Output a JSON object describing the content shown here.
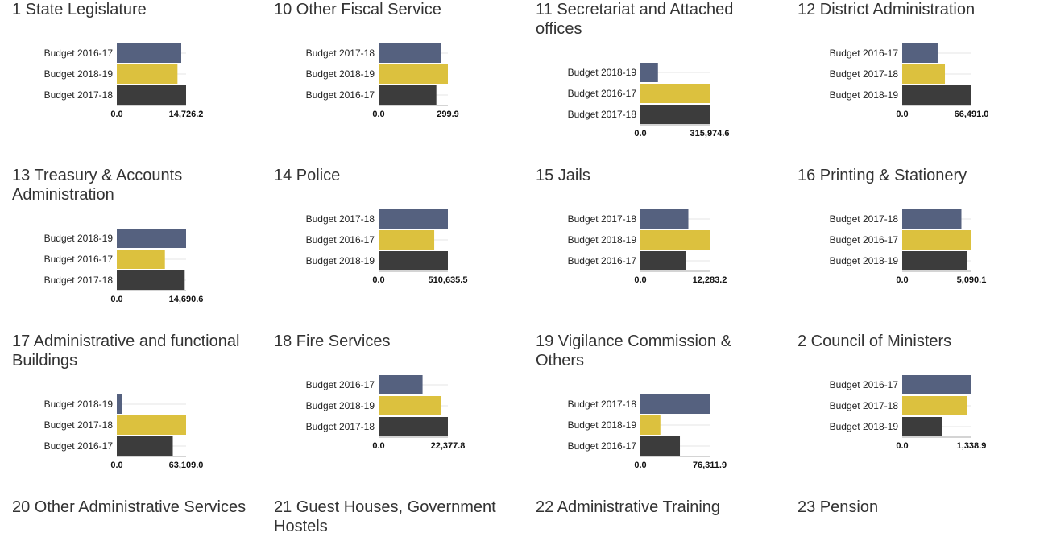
{
  "colors": {
    "first": "#55617f",
    "second": "#dcc13e",
    "third": "#3c3c3c",
    "grid": "#e6e6e6",
    "axis": "#aaaaaa"
  },
  "chart_data": [
    {
      "type": "bar",
      "title": "1 State Legislature",
      "categories": [
        "Budget 2016-17",
        "Budget 2018-19",
        "Budget 2017-18"
      ],
      "values": [
        13700,
        12900,
        14726.2
      ],
      "xlim": [
        0,
        14726.2
      ],
      "ticks": [
        "0.0",
        "14,726.2"
      ]
    },
    {
      "type": "bar",
      "title": "10 Other Fiscal Service",
      "categories": [
        "Budget 2017-18",
        "Budget 2018-19",
        "Budget 2016-17"
      ],
      "values": [
        270,
        299.9,
        250
      ],
      "xlim": [
        0,
        299.9
      ],
      "ticks": [
        "0.0",
        "299.9"
      ]
    },
    {
      "type": "bar",
      "title": "11 Secretariat and Attached offices",
      "categories": [
        "Budget 2018-19",
        "Budget 2016-17",
        "Budget 2017-18"
      ],
      "values": [
        80000,
        315974.6,
        315974.6
      ],
      "xlim": [
        0,
        315974.6
      ],
      "ticks": [
        "0.0",
        "315,974.6"
      ]
    },
    {
      "type": "bar",
      "title": "12 District Administration",
      "categories": [
        "Budget 2016-17",
        "Budget 2017-18",
        "Budget 2018-19"
      ],
      "values": [
        34000,
        41000,
        66491.0
      ],
      "xlim": [
        0,
        66491.0
      ],
      "ticks": [
        "0.0",
        "66,491.0"
      ]
    },
    {
      "type": "bar",
      "title": "13 Treasury & Accounts Administration",
      "categories": [
        "Budget 2018-19",
        "Budget 2016-17",
        "Budget 2017-18"
      ],
      "values": [
        14690.6,
        10200,
        14400
      ],
      "xlim": [
        0,
        14690.6
      ],
      "ticks": [
        "0.0",
        "14,690.6"
      ]
    },
    {
      "type": "bar",
      "title": "14 Police",
      "categories": [
        "Budget 2017-18",
        "Budget 2016-17",
        "Budget 2018-19"
      ],
      "values": [
        510635.5,
        410000,
        510635.5
      ],
      "xlim": [
        0,
        510635.5
      ],
      "ticks": [
        "0.0",
        "510,635.5"
      ]
    },
    {
      "type": "bar",
      "title": "15 Jails",
      "categories": [
        "Budget 2017-18",
        "Budget 2018-19",
        "Budget 2016-17"
      ],
      "values": [
        8500,
        12283.2,
        8000
      ],
      "xlim": [
        0,
        12283.2
      ],
      "ticks": [
        "0.0",
        "12,283.2"
      ]
    },
    {
      "type": "bar",
      "title": "16 Printing & Stationery",
      "categories": [
        "Budget 2017-18",
        "Budget 2016-17",
        "Budget 2018-19"
      ],
      "values": [
        4350,
        5090.1,
        4750
      ],
      "xlim": [
        0,
        5090.1
      ],
      "ticks": [
        "0.0",
        "5,090.1"
      ]
    },
    {
      "type": "bar",
      "title": "17 Administrative and functional Buildings",
      "categories": [
        "Budget 2018-19",
        "Budget 2017-18",
        "Budget 2016-17"
      ],
      "values": [
        4500,
        63109.0,
        51000
      ],
      "xlim": [
        0,
        63109.0
      ],
      "ticks": [
        "0.0",
        "63,109.0"
      ]
    },
    {
      "type": "bar",
      "title": "18 Fire Services",
      "categories": [
        "Budget 2016-17",
        "Budget 2018-19",
        "Budget 2017-18"
      ],
      "values": [
        14200,
        20200,
        22377.8
      ],
      "xlim": [
        0,
        22377.8
      ],
      "ticks": [
        "0.0",
        "22,377.8"
      ]
    },
    {
      "type": "bar",
      "title": "19 Vigilance Commission & Others",
      "categories": [
        "Budget 2017-18",
        "Budget 2018-19",
        "Budget 2016-17"
      ],
      "values": [
        76311.9,
        22000,
        43500
      ],
      "xlim": [
        0,
        76311.9
      ],
      "ticks": [
        "0.0",
        "76,311.9"
      ]
    },
    {
      "type": "bar",
      "title": "2 Council of Ministers",
      "categories": [
        "Budget 2016-17",
        "Budget 2017-18",
        "Budget 2018-19"
      ],
      "values": [
        1338.9,
        1260,
        770
      ],
      "xlim": [
        0,
        1338.9
      ],
      "ticks": [
        "0.0",
        "1,338.9"
      ]
    }
  ],
  "bottom_titles": [
    "20 Other Administrative Services",
    "21 Guest Houses, Government Hostels",
    "22 Administrative Training",
    "23 Pension"
  ]
}
